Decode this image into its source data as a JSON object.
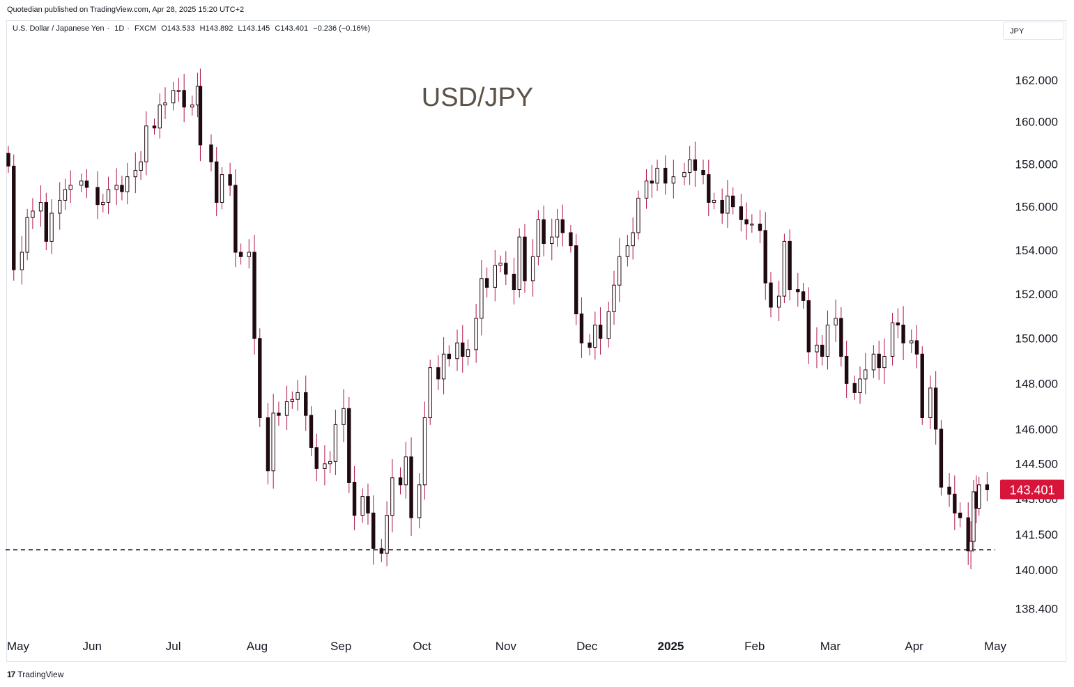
{
  "header": {
    "publish_credit": "Quotedian published on TradingView.com, Apr 28, 2025 15:20 UTC+2"
  },
  "symbol_bar": {
    "name": "U.S. Dollar / Japanese Yen",
    "interval": "1D",
    "source": "FXCM",
    "open": "O143.533",
    "high": "H143.892",
    "low": "L143.145",
    "close": "C143.401",
    "change": "−0.236 (−0.16%)"
  },
  "currency_button": "JPY",
  "footer": {
    "logo": "17",
    "brand": "TradingView"
  },
  "colors": {
    "candle_body": "#1f0a10",
    "wick": "#b0124e",
    "price_label_bg": "#d7153a",
    "support_line": "#131722",
    "annotation": "#5d5248"
  },
  "chart_data": {
    "type": "candlestick",
    "title": "USD/JPY",
    "y_ticks": [
      "138.400",
      "140.000",
      "141.500",
      "143.000",
      "144.500",
      "146.000",
      "148.000",
      "150.000",
      "152.000",
      "154.000",
      "156.000",
      "158.000",
      "160.000",
      "162.000"
    ],
    "y_scale": "log",
    "y_range": [
      137.5,
      162.5
    ],
    "x_ticks": [
      "May",
      "Jun",
      "Jul",
      "Aug",
      "Sep",
      "Oct",
      "Nov",
      "Dec",
      "2025",
      "Feb",
      "Mar",
      "Apr",
      "May"
    ],
    "x_range": [
      "2024-05-01",
      "2025-05-01"
    ],
    "last_price": "143.401",
    "support_level": 140.85,
    "closes": [
      {
        "date": "2024-05-01",
        "close": 157.9
      },
      {
        "date": "2024-05-03",
        "close": 153.1
      },
      {
        "date": "2024-05-06",
        "close": 153.9
      },
      {
        "date": "2024-05-08",
        "close": 155.5
      },
      {
        "date": "2024-05-10",
        "close": 155.8
      },
      {
        "date": "2024-05-13",
        "close": 156.2
      },
      {
        "date": "2024-05-15",
        "close": 154.4
      },
      {
        "date": "2024-05-17",
        "close": 155.7
      },
      {
        "date": "2024-05-20",
        "close": 156.3
      },
      {
        "date": "2024-05-22",
        "close": 156.8
      },
      {
        "date": "2024-05-24",
        "close": 157.0
      },
      {
        "date": "2024-05-28",
        "close": 157.2
      },
      {
        "date": "2024-05-30",
        "close": 156.9
      },
      {
        "date": "2024-06-03",
        "close": 156.1
      },
      {
        "date": "2024-06-05",
        "close": 156.2
      },
      {
        "date": "2024-06-07",
        "close": 156.8
      },
      {
        "date": "2024-06-10",
        "close": 157.0
      },
      {
        "date": "2024-06-12",
        "close": 156.7
      },
      {
        "date": "2024-06-14",
        "close": 157.4
      },
      {
        "date": "2024-06-17",
        "close": 157.7
      },
      {
        "date": "2024-06-19",
        "close": 158.1
      },
      {
        "date": "2024-06-21",
        "close": 159.8
      },
      {
        "date": "2024-06-24",
        "close": 159.7
      },
      {
        "date": "2024-06-26",
        "close": 160.8
      },
      {
        "date": "2024-06-28",
        "close": 160.9
      },
      {
        "date": "2024-07-01",
        "close": 161.5
      },
      {
        "date": "2024-07-03",
        "close": 161.5
      },
      {
        "date": "2024-07-05",
        "close": 160.7
      },
      {
        "date": "2024-07-08",
        "close": 160.8
      },
      {
        "date": "2024-07-10",
        "close": 161.7
      },
      {
        "date": "2024-07-11",
        "close": 158.9
      },
      {
        "date": "2024-07-15",
        "close": 158.1
      },
      {
        "date": "2024-07-17",
        "close": 156.2
      },
      {
        "date": "2024-07-19",
        "close": 157.5
      },
      {
        "date": "2024-07-22",
        "close": 157.0
      },
      {
        "date": "2024-07-24",
        "close": 153.9
      },
      {
        "date": "2024-07-26",
        "close": 153.7
      },
      {
        "date": "2024-07-29",
        "close": 153.9
      },
      {
        "date": "2024-07-31",
        "close": 150.0
      },
      {
        "date": "2024-08-02",
        "close": 146.5
      },
      {
        "date": "2024-08-05",
        "close": 144.2
      },
      {
        "date": "2024-08-07",
        "close": 146.7
      },
      {
        "date": "2024-08-09",
        "close": 146.6
      },
      {
        "date": "2024-08-12",
        "close": 147.2
      },
      {
        "date": "2024-08-14",
        "close": 147.3
      },
      {
        "date": "2024-08-16",
        "close": 147.6
      },
      {
        "date": "2024-08-19",
        "close": 146.6
      },
      {
        "date": "2024-08-21",
        "close": 145.2
      },
      {
        "date": "2024-08-23",
        "close": 144.3
      },
      {
        "date": "2024-08-26",
        "close": 144.5
      },
      {
        "date": "2024-08-28",
        "close": 144.6
      },
      {
        "date": "2024-08-30",
        "close": 146.2
      },
      {
        "date": "2024-09-02",
        "close": 146.9
      },
      {
        "date": "2024-09-04",
        "close": 143.7
      },
      {
        "date": "2024-09-06",
        "close": 142.3
      },
      {
        "date": "2024-09-09",
        "close": 143.1
      },
      {
        "date": "2024-09-11",
        "close": 142.4
      },
      {
        "date": "2024-09-13",
        "close": 140.9
      },
      {
        "date": "2024-09-16",
        "close": 140.7
      },
      {
        "date": "2024-09-18",
        "close": 142.3
      },
      {
        "date": "2024-09-20",
        "close": 143.9
      },
      {
        "date": "2024-09-23",
        "close": 143.6
      },
      {
        "date": "2024-09-25",
        "close": 144.8
      },
      {
        "date": "2024-09-27",
        "close": 142.2
      },
      {
        "date": "2024-09-30",
        "close": 143.6
      },
      {
        "date": "2024-10-02",
        "close": 146.5
      },
      {
        "date": "2024-10-04",
        "close": 148.7
      },
      {
        "date": "2024-10-07",
        "close": 148.2
      },
      {
        "date": "2024-10-09",
        "close": 149.3
      },
      {
        "date": "2024-10-11",
        "close": 149.1
      },
      {
        "date": "2024-10-14",
        "close": 149.8
      },
      {
        "date": "2024-10-16",
        "close": 149.2
      },
      {
        "date": "2024-10-18",
        "close": 149.5
      },
      {
        "date": "2024-10-21",
        "close": 150.9
      },
      {
        "date": "2024-10-23",
        "close": 152.7
      },
      {
        "date": "2024-10-25",
        "close": 152.3
      },
      {
        "date": "2024-10-28",
        "close": 153.3
      },
      {
        "date": "2024-10-30",
        "close": 153.4
      },
      {
        "date": "2024-11-01",
        "close": 152.9
      },
      {
        "date": "2024-11-04",
        "close": 152.2
      },
      {
        "date": "2024-11-06",
        "close": 154.6
      },
      {
        "date": "2024-11-08",
        "close": 152.6
      },
      {
        "date": "2024-11-11",
        "close": 153.7
      },
      {
        "date": "2024-11-13",
        "close": 155.4
      },
      {
        "date": "2024-11-15",
        "close": 154.3
      },
      {
        "date": "2024-11-18",
        "close": 154.6
      },
      {
        "date": "2024-11-20",
        "close": 155.4
      },
      {
        "date": "2024-11-22",
        "close": 154.8
      },
      {
        "date": "2024-11-25",
        "close": 154.2
      },
      {
        "date": "2024-11-27",
        "close": 151.1
      },
      {
        "date": "2024-11-29",
        "close": 149.8
      },
      {
        "date": "2024-12-02",
        "close": 149.6
      },
      {
        "date": "2024-12-04",
        "close": 150.6
      },
      {
        "date": "2024-12-06",
        "close": 150.0
      },
      {
        "date": "2024-12-09",
        "close": 151.2
      },
      {
        "date": "2024-12-11",
        "close": 152.4
      },
      {
        "date": "2024-12-13",
        "close": 153.7
      },
      {
        "date": "2024-12-16",
        "close": 154.2
      },
      {
        "date": "2024-12-18",
        "close": 154.8
      },
      {
        "date": "2024-12-20",
        "close": 156.4
      },
      {
        "date": "2024-12-23",
        "close": 157.2
      },
      {
        "date": "2024-12-25",
        "close": 157.1
      },
      {
        "date": "2024-12-27",
        "close": 157.8
      },
      {
        "date": "2024-12-30",
        "close": 157.1
      },
      {
        "date": "2025-01-02",
        "close": 157.4
      },
      {
        "date": "2025-01-06",
        "close": 157.6
      },
      {
        "date": "2025-01-08",
        "close": 158.2
      },
      {
        "date": "2025-01-10",
        "close": 157.7
      },
      {
        "date": "2025-01-13",
        "close": 157.5
      },
      {
        "date": "2025-01-15",
        "close": 156.2
      },
      {
        "date": "2025-01-17",
        "close": 156.3
      },
      {
        "date": "2025-01-20",
        "close": 155.7
      },
      {
        "date": "2025-01-22",
        "close": 156.5
      },
      {
        "date": "2025-01-24",
        "close": 156.0
      },
      {
        "date": "2025-01-27",
        "close": 155.4
      },
      {
        "date": "2025-01-29",
        "close": 155.2
      },
      {
        "date": "2025-01-31",
        "close": 155.2
      },
      {
        "date": "2025-02-03",
        "close": 154.9
      },
      {
        "date": "2025-02-05",
        "close": 152.5
      },
      {
        "date": "2025-02-07",
        "close": 151.4
      },
      {
        "date": "2025-02-10",
        "close": 151.9
      },
      {
        "date": "2025-02-12",
        "close": 154.4
      },
      {
        "date": "2025-02-14",
        "close": 152.2
      },
      {
        "date": "2025-02-17",
        "close": 152.1
      },
      {
        "date": "2025-02-19",
        "close": 151.7
      },
      {
        "date": "2025-02-21",
        "close": 149.4
      },
      {
        "date": "2025-02-24",
        "close": 149.7
      },
      {
        "date": "2025-02-26",
        "close": 149.2
      },
      {
        "date": "2025-02-28",
        "close": 150.6
      },
      {
        "date": "2025-03-03",
        "close": 150.9
      },
      {
        "date": "2025-03-05",
        "close": 149.2
      },
      {
        "date": "2025-03-07",
        "close": 148.0
      },
      {
        "date": "2025-03-10",
        "close": 147.6
      },
      {
        "date": "2025-03-12",
        "close": 148.2
      },
      {
        "date": "2025-03-14",
        "close": 148.6
      },
      {
        "date": "2025-03-17",
        "close": 149.3
      },
      {
        "date": "2025-03-19",
        "close": 148.7
      },
      {
        "date": "2025-03-21",
        "close": 149.2
      },
      {
        "date": "2025-03-24",
        "close": 150.7
      },
      {
        "date": "2025-03-26",
        "close": 150.6
      },
      {
        "date": "2025-03-28",
        "close": 149.8
      },
      {
        "date": "2025-03-31",
        "close": 149.9
      },
      {
        "date": "2025-04-02",
        "close": 149.3
      },
      {
        "date": "2025-04-04",
        "close": 146.5
      },
      {
        "date": "2025-04-07",
        "close": 147.8
      },
      {
        "date": "2025-04-09",
        "close": 146.0
      },
      {
        "date": "2025-04-11",
        "close": 143.5
      },
      {
        "date": "2025-04-14",
        "close": 143.2
      },
      {
        "date": "2025-04-16",
        "close": 142.4
      },
      {
        "date": "2025-04-18",
        "close": 142.2
      },
      {
        "date": "2025-04-21",
        "close": 140.8
      },
      {
        "date": "2025-04-22",
        "close": 141.2
      },
      {
        "date": "2025-04-23",
        "close": 143.3
      },
      {
        "date": "2025-04-24",
        "close": 142.6
      },
      {
        "date": "2025-04-25",
        "close": 143.6
      },
      {
        "date": "2025-04-28",
        "close": 143.4
      }
    ]
  }
}
